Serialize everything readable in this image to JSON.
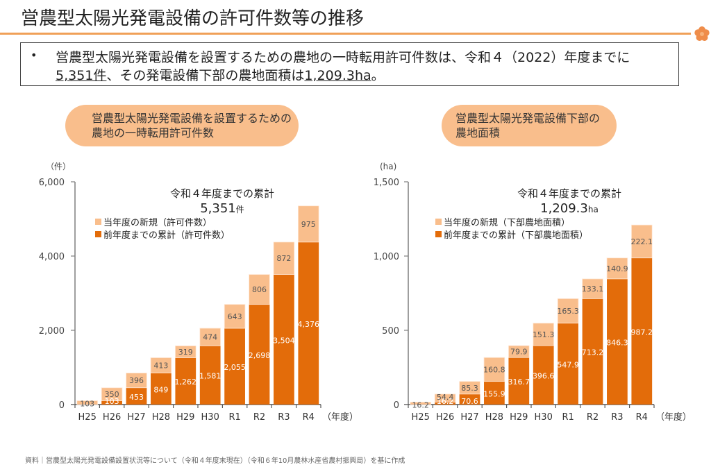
{
  "page": {
    "title": "営農型太陽光発電設備の許可件数等の推移",
    "decoration_icon": "plum-blossom-icon",
    "accent_color": "#f0a058"
  },
  "summary": {
    "bullet": "•",
    "line1": "営農型太陽光発電設備を設置するための農地の一時転用許可件数は、令和４（2022）年度までに",
    "line2_u1": "5,351件",
    "line2_mid": "、その発電設備下部の農地面積は",
    "line2_u2": "1,209.3ha",
    "line2_end": "。"
  },
  "left_panel": {
    "pill_line1": "営農型太陽光発電設備を設置するための",
    "pill_line2": "農地の一時転用許可件数"
  },
  "right_panel": {
    "pill_line1": "営農型太陽光発電設備下部の",
    "pill_line2": "農地面積"
  },
  "footer": "資料｜営農型太陽光発電設備設置状況等について（令和４年度末現在）（令和６年10月農林水産省農村振興局）を基に作成",
  "colors": {
    "prior_cumulative": "#e36c0a",
    "new_this_year": "#f9be8c",
    "axis": "#7f7f7f"
  },
  "chart_data": [
    {
      "type": "bar",
      "stacked": true,
      "title": "営農型太陽光発電設備を設置するための農地の一時転用許可件数",
      "ylabel": "（件）",
      "xlabel": "（年度）",
      "ylim": [
        0,
        6000
      ],
      "yticks": [
        0,
        2000,
        4000,
        6000
      ],
      "ytick_labels": [
        "0",
        "2,000",
        "4,000",
        "6,000"
      ],
      "categories": [
        "H25",
        "H26",
        "H27",
        "H28",
        "H29",
        "H30",
        "R1",
        "R2",
        "R3",
        "R4"
      ],
      "series": [
        {
          "name": "前年度までの累計（許可件数）",
          "color": "#e36c0a",
          "values": [
            0,
            103,
            453,
            849,
            1262,
            1581,
            2055,
            2698,
            3504,
            4376
          ],
          "labels": [
            "",
            "103",
            "453",
            "849",
            "1,262",
            "1,581",
            "2,055",
            "2,698",
            "3,504",
            "4,376"
          ]
        },
        {
          "name": "当年度の新規（許可件数）",
          "color": "#f9be8c",
          "values": [
            103,
            350,
            396,
            413,
            319,
            474,
            643,
            806,
            872,
            975
          ],
          "labels": [
            "103",
            "350",
            "396",
            "413",
            "319",
            "474",
            "643",
            "806",
            "872",
            "975"
          ]
        }
      ],
      "legend": [
        "当年度の新規（許可件数）",
        "前年度までの累計（許可件数）"
      ],
      "legend_position": "top-left",
      "annotation_line1": "令和４年度までの累計",
      "annotation_value": "5,351",
      "annotation_unit": "件",
      "grid": false
    },
    {
      "type": "bar",
      "stacked": true,
      "title": "営農型太陽光発電設備下部の農地面積",
      "ylabel": "(ha)",
      "xlabel": "（年度）",
      "ylim": [
        0,
        1500
      ],
      "yticks": [
        0,
        500,
        1000,
        1500
      ],
      "ytick_labels": [
        "0",
        "500",
        "1,000",
        "1,500"
      ],
      "categories": [
        "H25",
        "H26",
        "H27",
        "H28",
        "H29",
        "H30",
        "R1",
        "R2",
        "R3",
        "R4"
      ],
      "series": [
        {
          "name": "前年度までの累計（下部農地面積）",
          "color": "#e36c0a",
          "values": [
            0,
            16.2,
            70.6,
            155.9,
            316.7,
            396.6,
            547.9,
            713.2,
            846.3,
            987.2
          ],
          "labels": [
            "",
            "16.2",
            "70.6",
            "155.9",
            "316.7",
            "396.6",
            "547.9",
            "713.2",
            "846.3",
            "987.2"
          ]
        },
        {
          "name": "当年度の新規（下部農地面積）",
          "color": "#f9be8c",
          "values": [
            16.2,
            54.4,
            85.3,
            160.8,
            79.9,
            151.3,
            165.3,
            133.1,
            140.9,
            222.1
          ],
          "labels": [
            "16.2",
            "54.4",
            "85.3",
            "160.8",
            "79.9",
            "151.3",
            "165.3",
            "133.1",
            "140.9",
            "222.1"
          ]
        }
      ],
      "legend": [
        "当年度の新規（下部農地面積）",
        "前年度までの累計（下部農地面積）"
      ],
      "legend_position": "top-left",
      "annotation_line1": "令和４年度までの累計",
      "annotation_value": "1,209.3",
      "annotation_unit": "ha",
      "grid": false
    }
  ]
}
